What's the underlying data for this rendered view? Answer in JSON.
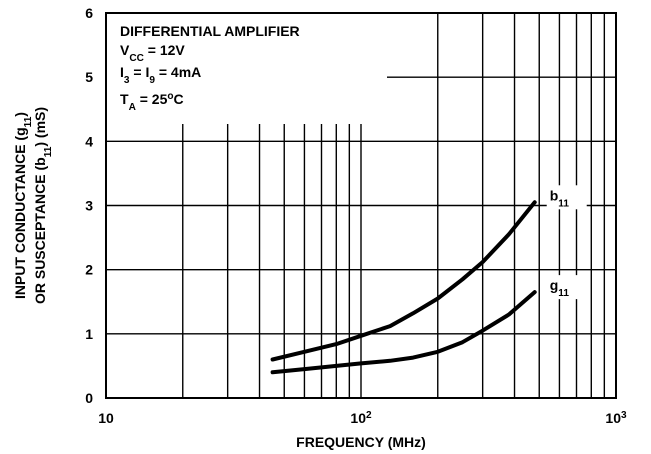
{
  "chart_data": {
    "type": "line",
    "x_scale": "log",
    "xlim": [
      10,
      1000
    ],
    "ylim": [
      0,
      6
    ],
    "grid": true,
    "xlabel": "FREQUENCY (MHz)",
    "ylabel_line1": [
      "INPUT CONDUCTANCE (g",
      "11",
      ")"
    ],
    "ylabel_line2": [
      "OR SUSCEPTANCE (b",
      "11",
      ") (mS)"
    ],
    "x_ticks": [
      {
        "value": 10,
        "base": "10",
        "exp": ""
      },
      {
        "value": 100,
        "base": "10",
        "exp": "2"
      },
      {
        "value": 1000,
        "base": "10",
        "exp": "3"
      }
    ],
    "y_ticks": [
      0,
      1,
      2,
      3,
      4,
      5,
      6
    ],
    "annotation": {
      "title": "DIFFERENTIAL AMPLIFIER",
      "lines": [
        [
          {
            "t": "V"
          },
          {
            "t": "CC",
            "sub": true
          },
          {
            "t": " = 12V"
          }
        ],
        [
          {
            "t": "I"
          },
          {
            "t": "3",
            "sub": true
          },
          {
            "t": " = I"
          },
          {
            "t": "9",
            "sub": true
          },
          {
            "t": " = 4mA"
          }
        ],
        [
          {
            "t": "T"
          },
          {
            "t": "A",
            "sub": true
          },
          {
            "t": " = 25"
          },
          {
            "t": "o",
            "sup": true
          },
          {
            "t": "C"
          }
        ]
      ]
    },
    "series": [
      {
        "name": "b11",
        "label_base": "b",
        "label_sub": "11",
        "x": [
          45,
          60,
          80,
          100,
          130,
          160,
          200,
          250,
          300,
          380,
          480
        ],
        "y": [
          0.6,
          0.72,
          0.84,
          0.97,
          1.12,
          1.32,
          1.55,
          1.85,
          2.12,
          2.55,
          3.05
        ]
      },
      {
        "name": "g11",
        "label_base": "g",
        "label_sub": "11",
        "x": [
          45,
          60,
          80,
          100,
          130,
          160,
          200,
          250,
          300,
          380,
          480
        ],
        "y": [
          0.4,
          0.45,
          0.5,
          0.54,
          0.58,
          0.63,
          0.72,
          0.87,
          1.05,
          1.3,
          1.65
        ]
      }
    ]
  }
}
